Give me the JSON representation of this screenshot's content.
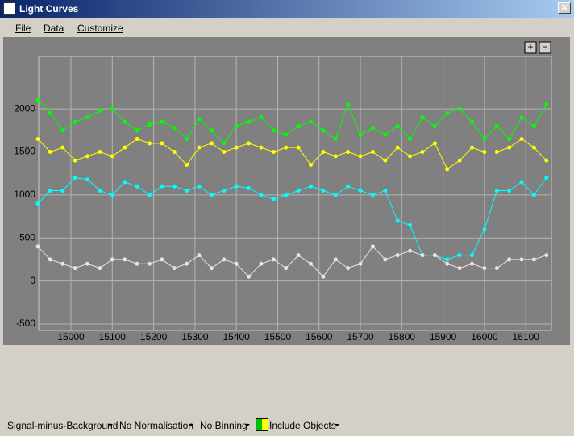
{
  "window": {
    "title": "Light Curves"
  },
  "menu": [
    "File",
    "Data",
    "Customize"
  ],
  "zoom": [
    "+",
    "−"
  ],
  "toolbar": [
    "Signal-minus-Background",
    "No Normalisation",
    "No Binning",
    "Include Objects"
  ],
  "chart_data": {
    "type": "line",
    "x": [
      14920,
      14950,
      14980,
      15010,
      15040,
      15070,
      15100,
      15130,
      15160,
      15190,
      15220,
      15250,
      15280,
      15310,
      15340,
      15370,
      15400,
      15430,
      15460,
      15490,
      15520,
      15550,
      15580,
      15610,
      15640,
      15670,
      15700,
      15730,
      15760,
      15790,
      15820,
      15850,
      15880,
      15910,
      15940,
      15970,
      16000,
      16030,
      16060,
      16090,
      16120,
      16150
    ],
    "series": [
      {
        "color": "#00ff00",
        "values": [
          2100,
          1950,
          1750,
          1850,
          1900,
          1980,
          2000,
          1850,
          1750,
          1820,
          1850,
          1780,
          1650,
          1880,
          1750,
          1600,
          1800,
          1850,
          1900,
          1750,
          1700,
          1800,
          1850,
          1750,
          1650,
          2050,
          1700,
          1780,
          1700,
          1800,
          1650,
          1900,
          1800,
          1950,
          2000,
          1850,
          1650,
          1800,
          1650,
          1900,
          1800,
          2050
        ]
      },
      {
        "color": "#ffff00",
        "values": [
          1650,
          1500,
          1550,
          1400,
          1450,
          1500,
          1450,
          1550,
          1650,
          1600,
          1600,
          1500,
          1350,
          1550,
          1600,
          1500,
          1550,
          1600,
          1550,
          1500,
          1550,
          1550,
          1350,
          1500,
          1450,
          1500,
          1450,
          1500,
          1400,
          1550,
          1450,
          1500,
          1600,
          1300,
          1400,
          1550,
          1500,
          1500,
          1550,
          1650,
          1550,
          1400
        ]
      },
      {
        "color": "#00ffff",
        "values": [
          900,
          1050,
          1050,
          1200,
          1180,
          1050,
          1000,
          1150,
          1100,
          1000,
          1100,
          1100,
          1050,
          1100,
          1000,
          1050,
          1100,
          1080,
          1000,
          950,
          1000,
          1050,
          1100,
          1050,
          1000,
          1100,
          1050,
          1000,
          1050,
          700,
          650,
          300,
          300,
          250,
          300,
          300,
          600,
          1050,
          1050,
          1150,
          1000,
          1200
        ]
      },
      {
        "color": "#ece2e2",
        "values": [
          400,
          250,
          200,
          150,
          200,
          150,
          250,
          250,
          200,
          200,
          250,
          150,
          200,
          300,
          150,
          250,
          200,
          50,
          200,
          250,
          150,
          300,
          200,
          50,
          250,
          150,
          200,
          400,
          250,
          300,
          350,
          300,
          300,
          200,
          150,
          200,
          150,
          150,
          250,
          250,
          250,
          300
        ]
      }
    ],
    "xlim": [
      14922,
      16162
    ],
    "ylim": [
      -575,
      2610
    ],
    "xticks": [
      15000,
      15100,
      15200,
      15300,
      15400,
      15500,
      15600,
      15700,
      15800,
      15900,
      16000,
      16100
    ],
    "yticks": [
      2000,
      1500,
      1000,
      500,
      0,
      -500
    ],
    "grid": true
  }
}
